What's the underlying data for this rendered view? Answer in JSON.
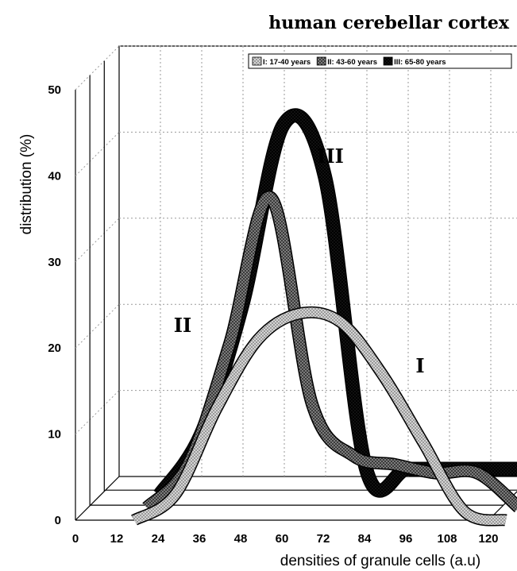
{
  "chart_data": {
    "type": "line",
    "title": "human cerebellar cortex",
    "xlabel": "densities of granule cells (a.u)",
    "ylabel": "distribution (%)",
    "categories": [
      12,
      24,
      36,
      48,
      60,
      72,
      84,
      96,
      108,
      120
    ],
    "x_ticks": [
      "0",
      "12",
      "24",
      "36",
      "48",
      "60",
      "72",
      "84",
      "96",
      "108",
      "120"
    ],
    "y_ticks": [
      "0",
      "10",
      "20",
      "30",
      "40",
      "50"
    ],
    "ylim": [
      0,
      50
    ],
    "grid": true,
    "legend_position": "top-right",
    "series": [
      {
        "name": "I: 17-40 years",
        "label": "I",
        "color": "#c9c9c9",
        "values": [
          0,
          3,
          13,
          21,
          24,
          23,
          17,
          9,
          1,
          0
        ]
      },
      {
        "name": "II: 43-60 years",
        "label": "II",
        "color": "#6f6f6f",
        "values": [
          0,
          5,
          19,
          36,
          12,
          6,
          5,
          4,
          4,
          0
        ]
      },
      {
        "name": "III: 65-80 years",
        "label": "III",
        "color": "#0d0d0d",
        "values": [
          0,
          7,
          22,
          43,
          37,
          3,
          3,
          3,
          3,
          3
        ]
      }
    ]
  }
}
